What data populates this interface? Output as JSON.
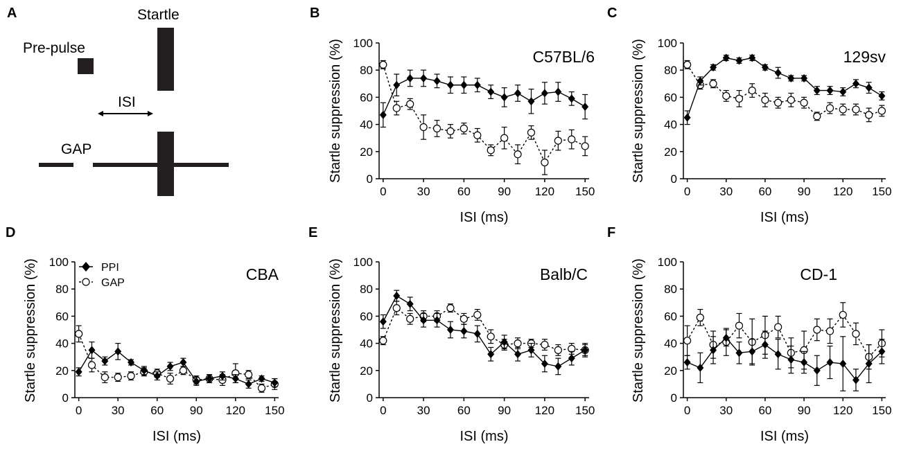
{
  "diagram": {
    "panel_letter": "A",
    "startle_label": "Startle",
    "prepulse_label": "Pre-pulse",
    "isi_label": "ISI",
    "gap_label": "GAP"
  },
  "legend": {
    "ppi_label": "PPI",
    "gap_label": "GAP"
  },
  "colors": {
    "ink": "#000000",
    "bar": "#231f20",
    "background": "#ffffff"
  },
  "chart_data": [
    {
      "panel": "B",
      "type": "line",
      "title": "C57BL/6",
      "xlabel": "ISI (ms)",
      "ylabel": "Startle suppression (%)",
      "xlim": [
        -3,
        153
      ],
      "ylim": [
        0,
        100
      ],
      "xticks": [
        0,
        30,
        60,
        90,
        120,
        150
      ],
      "yticks": [
        0,
        20,
        40,
        60,
        80,
        100
      ],
      "x": [
        0,
        10,
        20,
        30,
        40,
        50,
        60,
        70,
        80,
        90,
        100,
        110,
        120,
        130,
        140,
        150
      ],
      "series": [
        {
          "name": "PPI",
          "marker": "filled-diamond",
          "line": "solid",
          "values": [
            47,
            69,
            74,
            74,
            72,
            69,
            69,
            69,
            64,
            60,
            63,
            57,
            63,
            64,
            59,
            53
          ],
          "errors": [
            9,
            8,
            6,
            6,
            5,
            6,
            6,
            5,
            5,
            7,
            6,
            9,
            8,
            7,
            5,
            9
          ]
        },
        {
          "name": "GAP",
          "marker": "open-circle",
          "line": "dashed",
          "values": [
            84,
            52,
            55,
            38,
            37,
            35,
            37,
            32,
            21,
            30,
            18,
            34,
            12,
            28,
            29,
            24
          ],
          "errors": [
            3,
            5,
            4,
            9,
            6,
            5,
            4,
            5,
            4,
            8,
            7,
            5,
            9,
            7,
            7,
            7
          ]
        }
      ]
    },
    {
      "panel": "C",
      "type": "line",
      "title": "129sv",
      "xlabel": "ISI (ms)",
      "ylabel": "Startle suppression (%)",
      "xlim": [
        -3,
        153
      ],
      "ylim": [
        0,
        100
      ],
      "xticks": [
        0,
        30,
        60,
        90,
        120,
        150
      ],
      "yticks": [
        0,
        20,
        40,
        60,
        80,
        100
      ],
      "x": [
        0,
        10,
        20,
        30,
        40,
        50,
        60,
        70,
        80,
        90,
        100,
        110,
        120,
        130,
        140,
        150
      ],
      "series": [
        {
          "name": "PPI",
          "marker": "filled-diamond",
          "line": "solid",
          "values": [
            45,
            72,
            82,
            89,
            87,
            89,
            82,
            78,
            74,
            74,
            65,
            65,
            64,
            70,
            67,
            61
          ],
          "errors": [
            5,
            3,
            2,
            2,
            2,
            2,
            2,
            4,
            2,
            2,
            3,
            3,
            3,
            3,
            4,
            3
          ]
        },
        {
          "name": "GAP",
          "marker": "open-circle",
          "line": "dashed",
          "values": [
            84,
            69,
            70,
            61,
            59,
            65,
            58,
            56,
            58,
            56,
            46,
            52,
            51,
            51,
            47,
            50
          ],
          "errors": [
            3,
            3,
            3,
            4,
            6,
            5,
            5,
            4,
            5,
            4,
            3,
            4,
            4,
            4,
            5,
            4
          ]
        }
      ]
    },
    {
      "panel": "D",
      "type": "line",
      "title": "CBA",
      "xlabel": "ISI (ms)",
      "ylabel": "Startle suppression (%)",
      "xlim": [
        -3,
        153
      ],
      "ylim": [
        0,
        100
      ],
      "xticks": [
        0,
        30,
        60,
        90,
        120,
        150
      ],
      "yticks": [
        0,
        20,
        40,
        60,
        80,
        100
      ],
      "x": [
        0,
        10,
        20,
        30,
        40,
        50,
        60,
        70,
        80,
        90,
        100,
        110,
        120,
        130,
        140,
        150
      ],
      "series": [
        {
          "name": "PPI",
          "marker": "filled-diamond",
          "line": "solid",
          "values": [
            19,
            35,
            27,
            34,
            26,
            20,
            16,
            23,
            26,
            12,
            14,
            16,
            14,
            10,
            14,
            11
          ],
          "errors": [
            3,
            6,
            3,
            6,
            2,
            3,
            3,
            3,
            3,
            3,
            3,
            3,
            3,
            3,
            2,
            3
          ]
        },
        {
          "name": "GAP",
          "marker": "open-circle",
          "line": "dashed",
          "values": [
            47,
            24,
            15,
            15,
            16,
            19,
            18,
            14,
            20,
            13,
            14,
            13,
            18,
            17,
            7,
            10
          ],
          "errors": [
            6,
            5,
            4,
            3,
            3,
            3,
            3,
            4,
            3,
            3,
            3,
            4,
            7,
            3,
            3,
            4
          ]
        }
      ]
    },
    {
      "panel": "E",
      "type": "line",
      "title": "Balb/C",
      "xlabel": "ISI (ms)",
      "ylabel": "Startle suppression (%)",
      "xlim": [
        -3,
        153
      ],
      "ylim": [
        0,
        100
      ],
      "xticks": [
        0,
        30,
        60,
        90,
        120,
        150
      ],
      "yticks": [
        0,
        20,
        40,
        60,
        80,
        100
      ],
      "x": [
        0,
        10,
        20,
        30,
        40,
        50,
        60,
        70,
        80,
        90,
        100,
        110,
        120,
        130,
        140,
        150
      ],
      "series": [
        {
          "name": "PPI",
          "marker": "filled-diamond",
          "line": "solid",
          "values": [
            56,
            75,
            69,
            57,
            57,
            50,
            49,
            47,
            32,
            41,
            32,
            35,
            25,
            23,
            29,
            35
          ],
          "errors": [
            5,
            4,
            5,
            5,
            5,
            6,
            5,
            6,
            5,
            5,
            5,
            5,
            6,
            6,
            5,
            5
          ]
        },
        {
          "name": "GAP",
          "marker": "open-circle",
          "line": "dashed",
          "values": [
            42,
            66,
            58,
            60,
            60,
            66,
            58,
            61,
            45,
            39,
            40,
            40,
            39,
            35,
            36,
            35
          ],
          "errors": [
            3,
            5,
            4,
            4,
            4,
            3,
            4,
            4,
            5,
            4,
            4,
            3,
            4,
            4,
            4,
            4
          ]
        }
      ]
    },
    {
      "panel": "F",
      "type": "line",
      "title": "CD-1",
      "xlabel": "ISI (ms)",
      "ylabel": "Startle suppression (%)",
      "xlim": [
        -3,
        153
      ],
      "ylim": [
        0,
        100
      ],
      "xticks": [
        0,
        30,
        60,
        90,
        120,
        150
      ],
      "yticks": [
        0,
        20,
        40,
        60,
        80,
        100
      ],
      "x": [
        0,
        10,
        20,
        30,
        40,
        50,
        60,
        70,
        80,
        90,
        100,
        110,
        120,
        130,
        140,
        150
      ],
      "series": [
        {
          "name": "PPI",
          "marker": "filled-diamond",
          "line": "solid",
          "values": [
            26,
            22,
            35,
            44,
            33,
            34,
            39,
            32,
            28,
            26,
            20,
            26,
            25,
            13,
            25,
            34
          ],
          "errors": [
            5,
            11,
            10,
            6,
            8,
            9,
            10,
            11,
            10,
            8,
            11,
            12,
            20,
            8,
            14,
            9
          ]
        },
        {
          "name": "GAP",
          "marker": "open-circle",
          "line": "dashed",
          "values": [
            42,
            59,
            39,
            41,
            53,
            41,
            46,
            52,
            33,
            35,
            50,
            49,
            61,
            47,
            30,
            40
          ],
          "errors": [
            11,
            6,
            10,
            10,
            9,
            17,
            14,
            8,
            11,
            14,
            8,
            9,
            9,
            8,
            9,
            10
          ]
        }
      ]
    }
  ]
}
